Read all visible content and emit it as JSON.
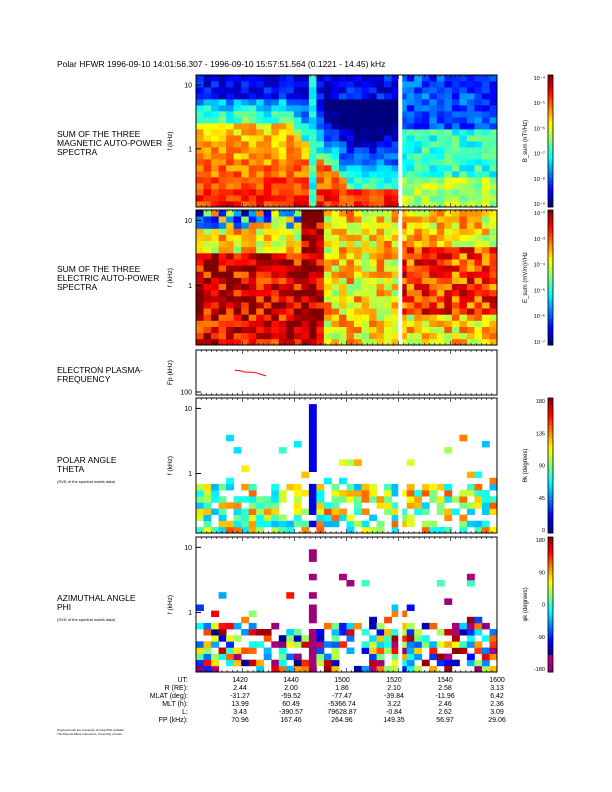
{
  "title": "Polar HFWR 1996-09-10 14:01:56.307 - 1996-09-10 15:57:51.564  (0.1221 - 14.45) kHz",
  "footer_lines": [
    "Produced with the University of Iowa PWI software",
    "The Plasma Wave Instrument, University of Iowa"
  ],
  "colors": {
    "line": "#ff0000",
    "axis": "#000000",
    "background": "#ffffff"
  },
  "chart_data": [
    {
      "type": "heatmap",
      "title": "SUM OF THE THREE MAGNETIC AUTO-POWER SPECTRA",
      "ylabel": "f (kHz)",
      "yscale": "log",
      "ylim": [
        0.1221,
        14.45
      ],
      "yticks": [
        "10",
        "1"
      ],
      "colorbar": {
        "label": "B_sum (nT²/Hz)",
        "ticks": [
          "10⁻⁴",
          "10⁻⁵",
          "10⁻⁶",
          "10⁻⁷",
          "10⁻⁸",
          "10⁻⁹"
        ]
      }
    },
    {
      "type": "heatmap",
      "title": "SUM OF THE THREE ELECTRIC AUTO-POWER SPECTRA",
      "ylabel": "f (kHz)",
      "yscale": "log",
      "ylim": [
        0.1221,
        14.45
      ],
      "yticks": [
        "10",
        "1"
      ],
      "colorbar": {
        "label": "E_sum (mV/m)²/Hz",
        "ticks": [
          "10⁻²",
          "10⁻³",
          "10⁻⁴",
          "10⁻⁵",
          "10⁻⁶",
          "10⁻⁷"
        ]
      }
    },
    {
      "type": "line",
      "title": "ELECTRON PLASMA-FREQUENCY",
      "ylabel": "Fp (kHz)",
      "yscale": "log",
      "yticks": [
        "100"
      ],
      "x_minutes_after_1400": [
        17,
        19,
        21,
        23,
        25,
        27,
        29
      ],
      "values": [
        165,
        163,
        158,
        158,
        156,
        150,
        145
      ]
    },
    {
      "type": "heatmap",
      "title": "POLAR ANGLE THETA",
      "subtitle": "(SVD of the spectral matrix data)",
      "ylabel": "f (kHz)",
      "yscale": "log",
      "yticks": [
        "10",
        "1"
      ],
      "colorbar": {
        "label": "θk (degrees)",
        "ticks": [
          "180",
          "135",
          "90",
          "45",
          "0"
        ],
        "range": [
          0,
          180
        ]
      }
    },
    {
      "type": "heatmap",
      "title": "AZIMUTHAL ANGLE PHI",
      "subtitle": "(SVD of the spectral matrix data)",
      "ylabel": "f (kHz)",
      "yscale": "log",
      "yticks": [
        "10",
        "1"
      ],
      "colorbar": {
        "label": "φk (degrees)",
        "ticks": [
          "180",
          "90",
          "0",
          "-90",
          "-180"
        ],
        "range": [
          -180,
          180
        ]
      }
    }
  ],
  "time_axis": {
    "start": "14:01:56.307",
    "end": "15:57:51.564",
    "ticks": [
      "1420",
      "1440",
      "1500",
      "1520",
      "1540",
      "1600"
    ],
    "data_gap": "~15:21"
  },
  "ephemeris": {
    "labels": [
      "UT:",
      "R (RE):",
      "MLAT (deg):",
      "MLT (h):",
      "L:",
      "FP (kHz):"
    ],
    "columns": [
      {
        "ut": "1420",
        "vals": [
          "2.44",
          "-31.27",
          "13.99",
          "3.43",
          "70.96"
        ]
      },
      {
        "ut": "1440",
        "vals": [
          "2.00",
          "-59.52",
          "60.49",
          "-390.57",
          "167.46"
        ]
      },
      {
        "ut": "1500",
        "vals": [
          "1.86",
          "-77.47",
          "-5366.74",
          "79628.87",
          "264.96"
        ]
      },
      {
        "ut": "1520",
        "vals": [
          "2.10",
          "-39.84",
          "3.22",
          "-0.84",
          "149.35"
        ]
      },
      {
        "ut": "1540",
        "vals": [
          "2.58",
          "-11.96",
          "2.46",
          "2.62",
          "56.97"
        ]
      },
      {
        "ut": "1600",
        "vals": [
          "3.13",
          "6.42",
          "2.36",
          "3.09",
          "29.06"
        ]
      }
    ]
  }
}
